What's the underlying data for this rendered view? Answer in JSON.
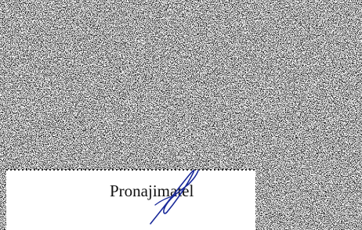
{
  "signature_block": {
    "label": "Pronajimatel"
  }
}
